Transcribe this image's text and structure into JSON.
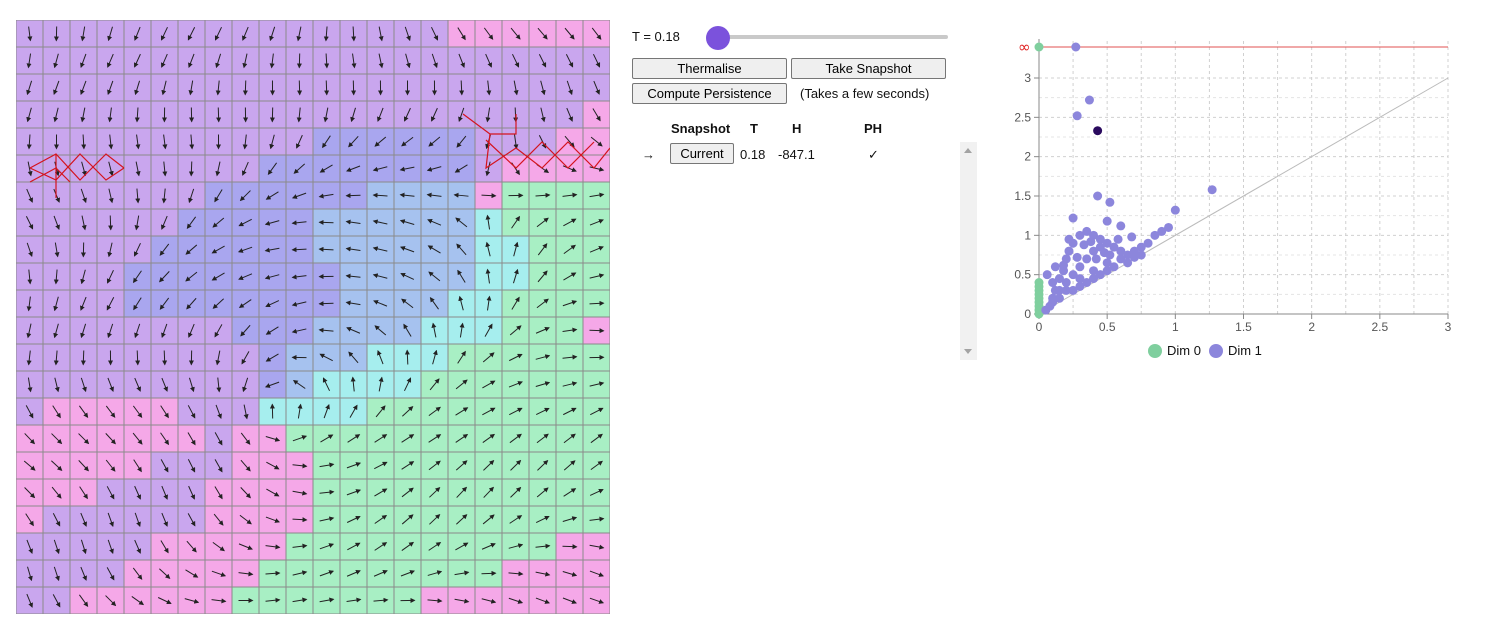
{
  "controls": {
    "temperature_label": "T = 0.18",
    "temperature_value": 0.18,
    "thermalise_label": "Thermalise",
    "snapshot_label": "Take Snapshot",
    "persistence_label": "Compute Persistence",
    "persistence_note": "(Takes a few seconds)"
  },
  "table": {
    "headers": [
      "Snapshot",
      "T",
      "H",
      "PH"
    ],
    "rows": [
      {
        "marker": "→",
        "button": "Current",
        "T": "0.18",
        "H": "-847.1",
        "PH": "✓"
      }
    ]
  },
  "chart_data": {
    "type": "scatter",
    "xlim": [
      0,
      3
    ],
    "ylim": [
      0,
      3.4
    ],
    "xticks": [
      "0",
      "0.5",
      "1",
      "1.5",
      "2",
      "2.5",
      "3"
    ],
    "yticks": [
      "0",
      "0.5",
      "1",
      "1.5",
      "2",
      "2.5",
      "3"
    ],
    "infinity_label": "∞",
    "grid": true,
    "legend": "bottom",
    "series": [
      {
        "name": "Dim 0",
        "color": "#7fcf9e",
        "points": [
          [
            0,
            0
          ],
          [
            0,
            0.05
          ],
          [
            0,
            0.1
          ],
          [
            0,
            0.15
          ],
          [
            0,
            0.2
          ],
          [
            0,
            0.25
          ],
          [
            0,
            0.3
          ],
          [
            0,
            0.35
          ],
          [
            0,
            0.4
          ],
          [
            0,
            "inf"
          ]
        ]
      },
      {
        "name": "Dim 1",
        "color": "#8c86dc",
        "points": [
          [
            0.27,
            "inf"
          ],
          [
            0.37,
            2.72
          ],
          [
            0.28,
            2.52
          ],
          [
            0.43,
            1.5
          ],
          [
            0.52,
            1.42
          ],
          [
            1.27,
            1.58
          ],
          [
            0.25,
            1.22
          ],
          [
            1.0,
            1.32
          ],
          [
            0.5,
            1.18
          ],
          [
            0.6,
            1.12
          ],
          [
            0.05,
            0.05
          ],
          [
            0.08,
            0.1
          ],
          [
            0.1,
            0.2
          ],
          [
            0.12,
            0.3
          ],
          [
            0.15,
            0.45
          ],
          [
            0.18,
            0.55
          ],
          [
            0.2,
            0.7
          ],
          [
            0.22,
            0.8
          ],
          [
            0.25,
            0.9
          ],
          [
            0.3,
            1.0
          ],
          [
            0.35,
            1.05
          ],
          [
            0.4,
            1.0
          ],
          [
            0.45,
            0.95
          ],
          [
            0.5,
            0.9
          ],
          [
            0.55,
            0.85
          ],
          [
            0.6,
            0.8
          ],
          [
            0.65,
            0.75
          ],
          [
            0.7,
            0.8
          ],
          [
            0.75,
            0.85
          ],
          [
            0.8,
            0.9
          ],
          [
            0.85,
            1.0
          ],
          [
            0.9,
            1.05
          ],
          [
            0.95,
            1.1
          ],
          [
            0.15,
            0.3
          ],
          [
            0.2,
            0.4
          ],
          [
            0.25,
            0.5
          ],
          [
            0.3,
            0.6
          ],
          [
            0.35,
            0.7
          ],
          [
            0.4,
            0.8
          ],
          [
            0.45,
            0.85
          ],
          [
            0.1,
            0.15
          ],
          [
            0.2,
            0.3
          ],
          [
            0.3,
            0.45
          ],
          [
            0.4,
            0.55
          ],
          [
            0.5,
            0.65
          ],
          [
            0.6,
            0.7
          ],
          [
            0.7,
            0.72
          ],
          [
            0.3,
            0.35
          ],
          [
            0.4,
            0.45
          ],
          [
            0.5,
            0.55
          ],
          [
            0.15,
            0.2
          ],
          [
            0.25,
            0.3
          ],
          [
            0.35,
            0.4
          ],
          [
            0.45,
            0.5
          ],
          [
            0.55,
            0.6
          ],
          [
            0.65,
            0.65
          ],
          [
            0.75,
            0.75
          ],
          [
            0.18,
            0.62
          ],
          [
            0.22,
            0.95
          ],
          [
            0.33,
            0.88
          ],
          [
            0.28,
            0.72
          ],
          [
            0.38,
            0.92
          ],
          [
            0.48,
            0.78
          ],
          [
            0.58,
            0.95
          ],
          [
            0.68,
            0.98
          ],
          [
            0.06,
            0.5
          ],
          [
            0.1,
            0.4
          ],
          [
            0.12,
            0.6
          ],
          [
            0.42,
            0.7
          ],
          [
            0.52,
            0.75
          ]
        ]
      },
      {
        "name": "highlight",
        "color": "#2a0a5e",
        "points": [
          [
            0.43,
            2.33
          ]
        ]
      }
    ],
    "legend_entries": [
      "Dim 0",
      "Dim 1"
    ]
  },
  "grid": {
    "rows": 22,
    "cols": 22,
    "description_colors": [
      "#f5a8e8",
      "#c9a6ee",
      "#a9a6ef",
      "#a6c2ef",
      "#a6eeee",
      "#a8efc4",
      "#f5b8a8",
      "#f3f0a8"
    ]
  }
}
